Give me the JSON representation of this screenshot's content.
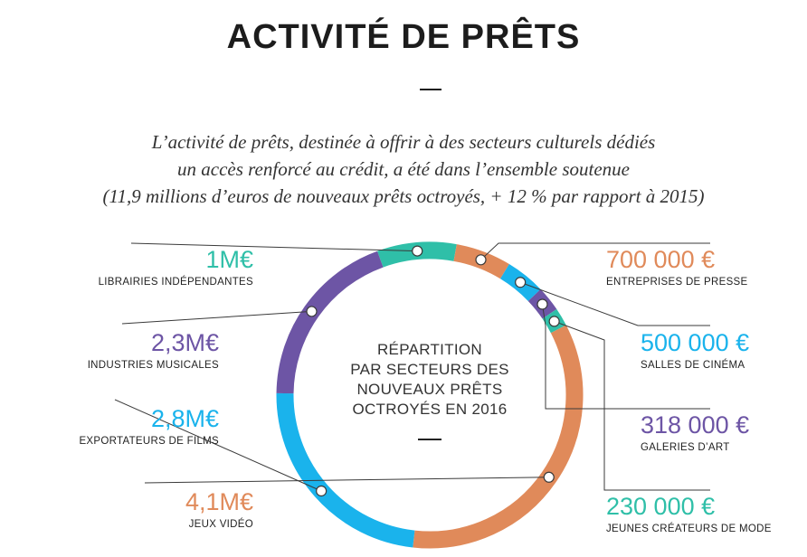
{
  "title": "ACTIVITÉ DE PRÊTS",
  "subtitle": [
    "L’activité de prêts, destinée à offrir à des secteurs culturels dédiés",
    "un accès renforcé au crédit, a été dans l’ensemble soutenue",
    "(11,9 millions d’euros de nouveaux prêts octroyés, + 12 % par rapport à 2015)"
  ],
  "center_label": [
    "RÉPARTITION",
    "PAR SECTEURS DES",
    "NOUVEAUX PRÊTS",
    "OCTROYÉS EN 2016"
  ],
  "chart_data": {
    "type": "pie",
    "style": "donut",
    "title": "RÉPARTITION PAR SECTEURS DES NOUVEAUX PRÊTS OCTROYÉS EN 2016",
    "unit": "€",
    "total_label": "11,9 millions d’euros",
    "series": [
      {
        "name": "LIBRAIRIES INDÉPENDANTES",
        "value": 1000000,
        "label": "1M€",
        "color": "#2fbfa8"
      },
      {
        "name": "ENTREPRISES DE PRESSE",
        "value": 700000,
        "label": "700 000 €",
        "color": "#e08a5a"
      },
      {
        "name": "SALLES DE CINÉMA",
        "value": 500000,
        "label": "500 000 €",
        "color": "#1ab3ec"
      },
      {
        "name": "GALERIES D’ART",
        "value": 318000,
        "label": "318 000 €",
        "color": "#6d55a5"
      },
      {
        "name": "JEUNES CRÉATEURS DE MODE",
        "value": 230000,
        "label": "230 000 €",
        "color": "#2fbfa8"
      },
      {
        "name": "JEUX VIDÉO",
        "value": 4100000,
        "label": "4,1M€",
        "color": "#e08a5a"
      },
      {
        "name": "EXPORTATEURS DE FILMS",
        "value": 2800000,
        "label": "2,8M€",
        "color": "#1ab3ec"
      },
      {
        "name": "INDUSTRIES MUSICALES",
        "value": 2300000,
        "label": "2,3M€",
        "color": "#6d55a5"
      }
    ]
  }
}
